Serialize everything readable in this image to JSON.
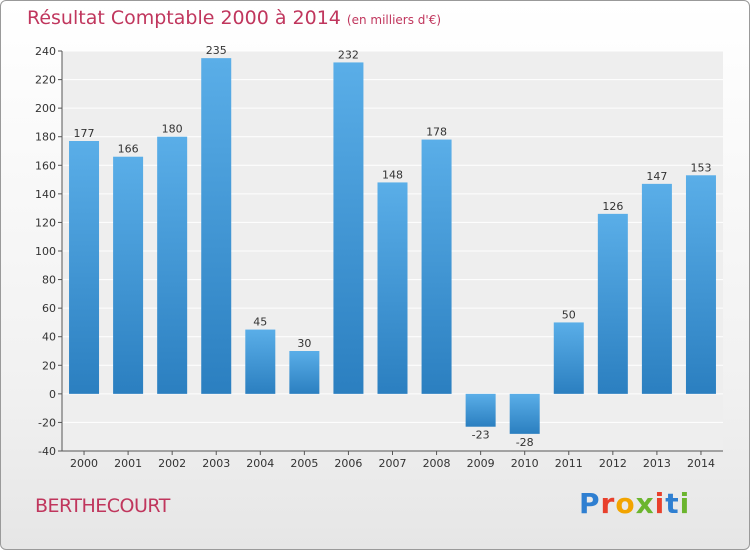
{
  "chart_data": {
    "type": "bar",
    "title": "Résultat Comptable 2000 à 2014",
    "subtitle": "(en milliers d'€)",
    "categories": [
      "2000",
      "2001",
      "2002",
      "2003",
      "2004",
      "2005",
      "2006",
      "2007",
      "2008",
      "2009",
      "2010",
      "2011",
      "2012",
      "2013",
      "2014"
    ],
    "values": [
      177,
      166,
      180,
      235,
      45,
      30,
      232,
      148,
      178,
      -23,
      -28,
      50,
      126,
      147,
      153
    ],
    "ylim": [
      -40,
      240
    ],
    "yticks": [
      -40,
      -20,
      0,
      20,
      40,
      60,
      80,
      100,
      120,
      140,
      160,
      180,
      200,
      220,
      240
    ],
    "grid": true,
    "xlabel": "",
    "ylabel": ""
  },
  "footer": {
    "town": "BERTHECOURT",
    "logo": {
      "letters": [
        "P",
        "r",
        "o",
        "x",
        "i",
        "t",
        "i"
      ],
      "colors": [
        "#2f7fd1",
        "#e8402c",
        "#f2a400",
        "#6bb52e",
        "#e8402c",
        "#2f7fd1",
        "#6bb52e"
      ]
    }
  },
  "colors": {
    "bar_top": "#5aaee8",
    "bar_bottom": "#2b7fc0",
    "plot_bg": "#eeeeee",
    "grid": "#ffffff",
    "title": "#c0365d"
  }
}
